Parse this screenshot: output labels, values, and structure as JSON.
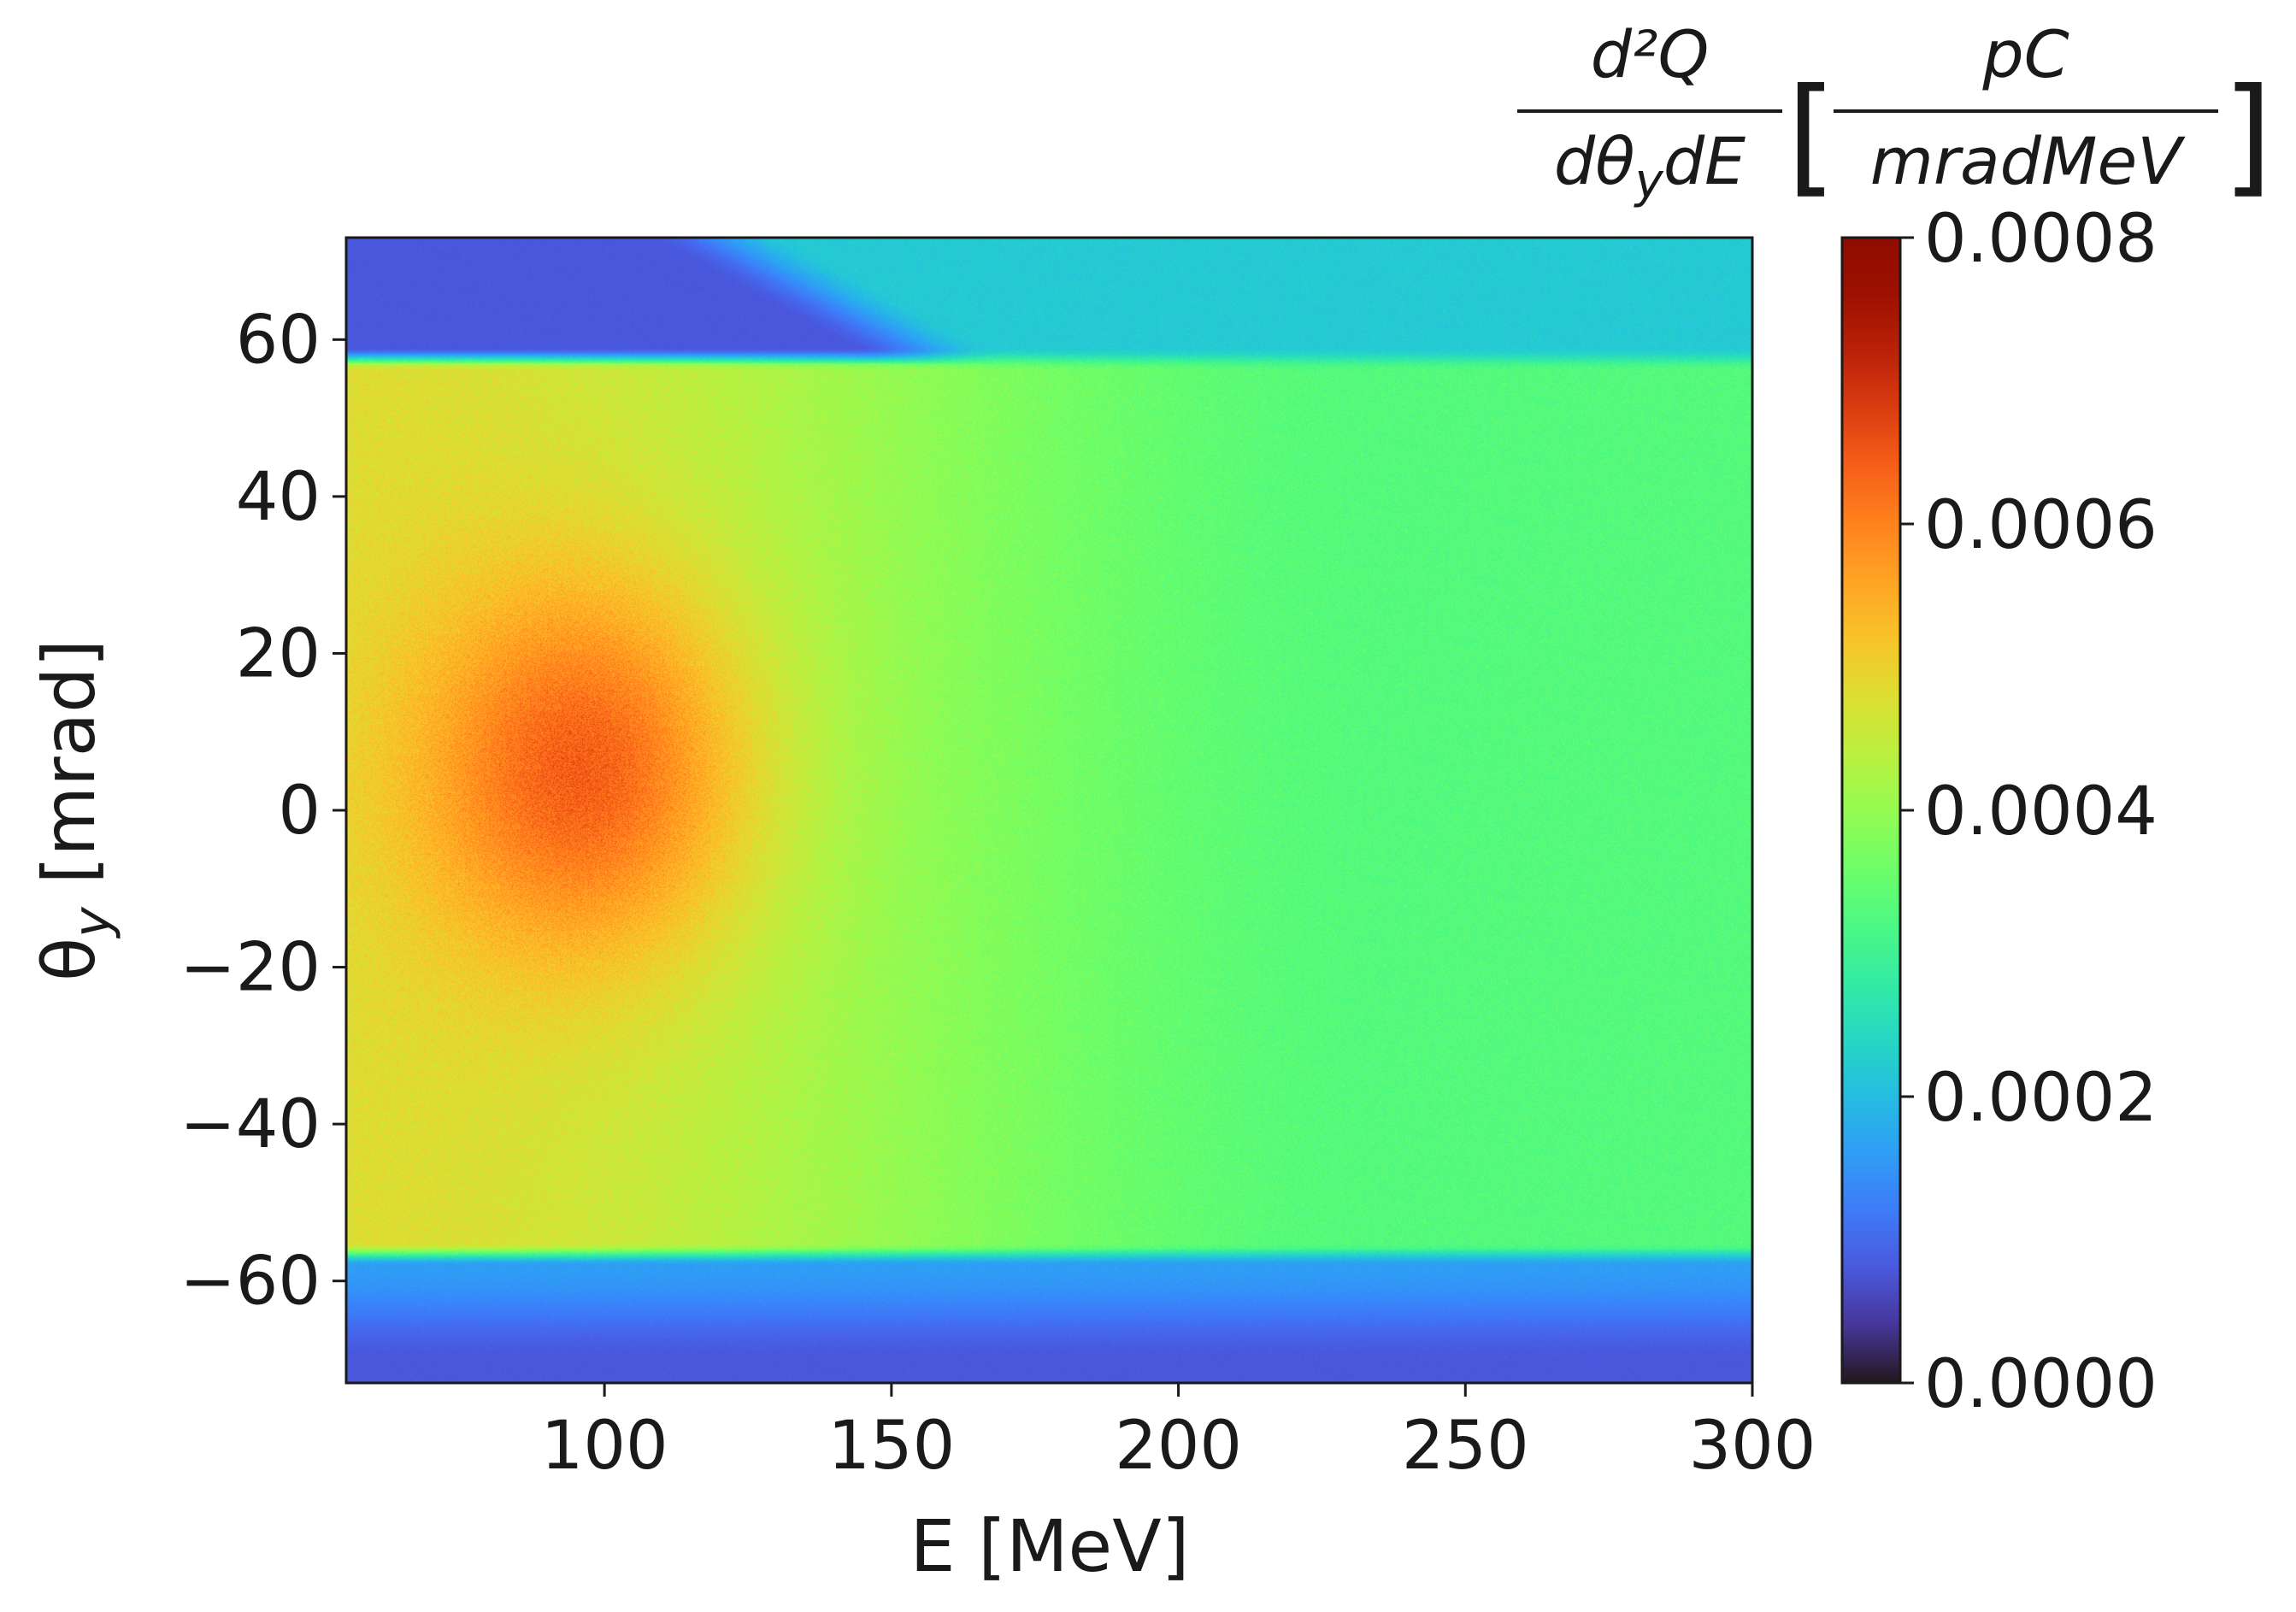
{
  "chart_data": {
    "type": "heatmap",
    "title": "",
    "xlabel": "E [MeV]",
    "ylabel": "θy [mrad]",
    "ylabel_main": "θ",
    "ylabel_sub": "y",
    "ylabel_rest": " [mrad]",
    "xlim": [
      55,
      300
    ],
    "ylim": [
      -73,
      73
    ],
    "xticks": [
      100,
      150,
      200,
      250,
      300
    ],
    "yticks": [
      60,
      40,
      20,
      0,
      -20,
      -40,
      -60
    ],
    "xtick_labels": [
      "100",
      "150",
      "200",
      "250",
      "300"
    ],
    "ytick_labels": [
      "60",
      "40",
      "20",
      "0",
      "−20",
      "−40",
      "−60"
    ],
    "colorbar": {
      "label": "d²Q/dθydE [pC/mradMeV]",
      "label_num": "d²Q",
      "label_den_main": "dθ",
      "label_den_sub": "y",
      "label_den_rest": "dE",
      "unit_num": "pC",
      "unit_den": "mradMeV",
      "range": [
        0,
        0.0008
      ],
      "ticks": [
        0.0008,
        0.0006,
        0.0004,
        0.0002,
        0.0
      ],
      "tick_labels": [
        "0.0008",
        "0.0006",
        "0.0004",
        "0.0002",
        "0.0000"
      ],
      "colormap": "turbo"
    },
    "features": {
      "peak_value": 0.00066,
      "peak_center": [
        97,
        5
      ],
      "peak_spread": [
        28,
        24
      ],
      "band_y_range": [
        -56,
        57
      ],
      "band_value_low_energy": 0.00048,
      "band_value_high_energy": 0.00033,
      "outside_band_value": 8e-05,
      "dark_region_top": {
        "x_max": 150,
        "y_min": 58
      },
      "dark_region_bottom": {
        "y_max": -58
      }
    }
  }
}
